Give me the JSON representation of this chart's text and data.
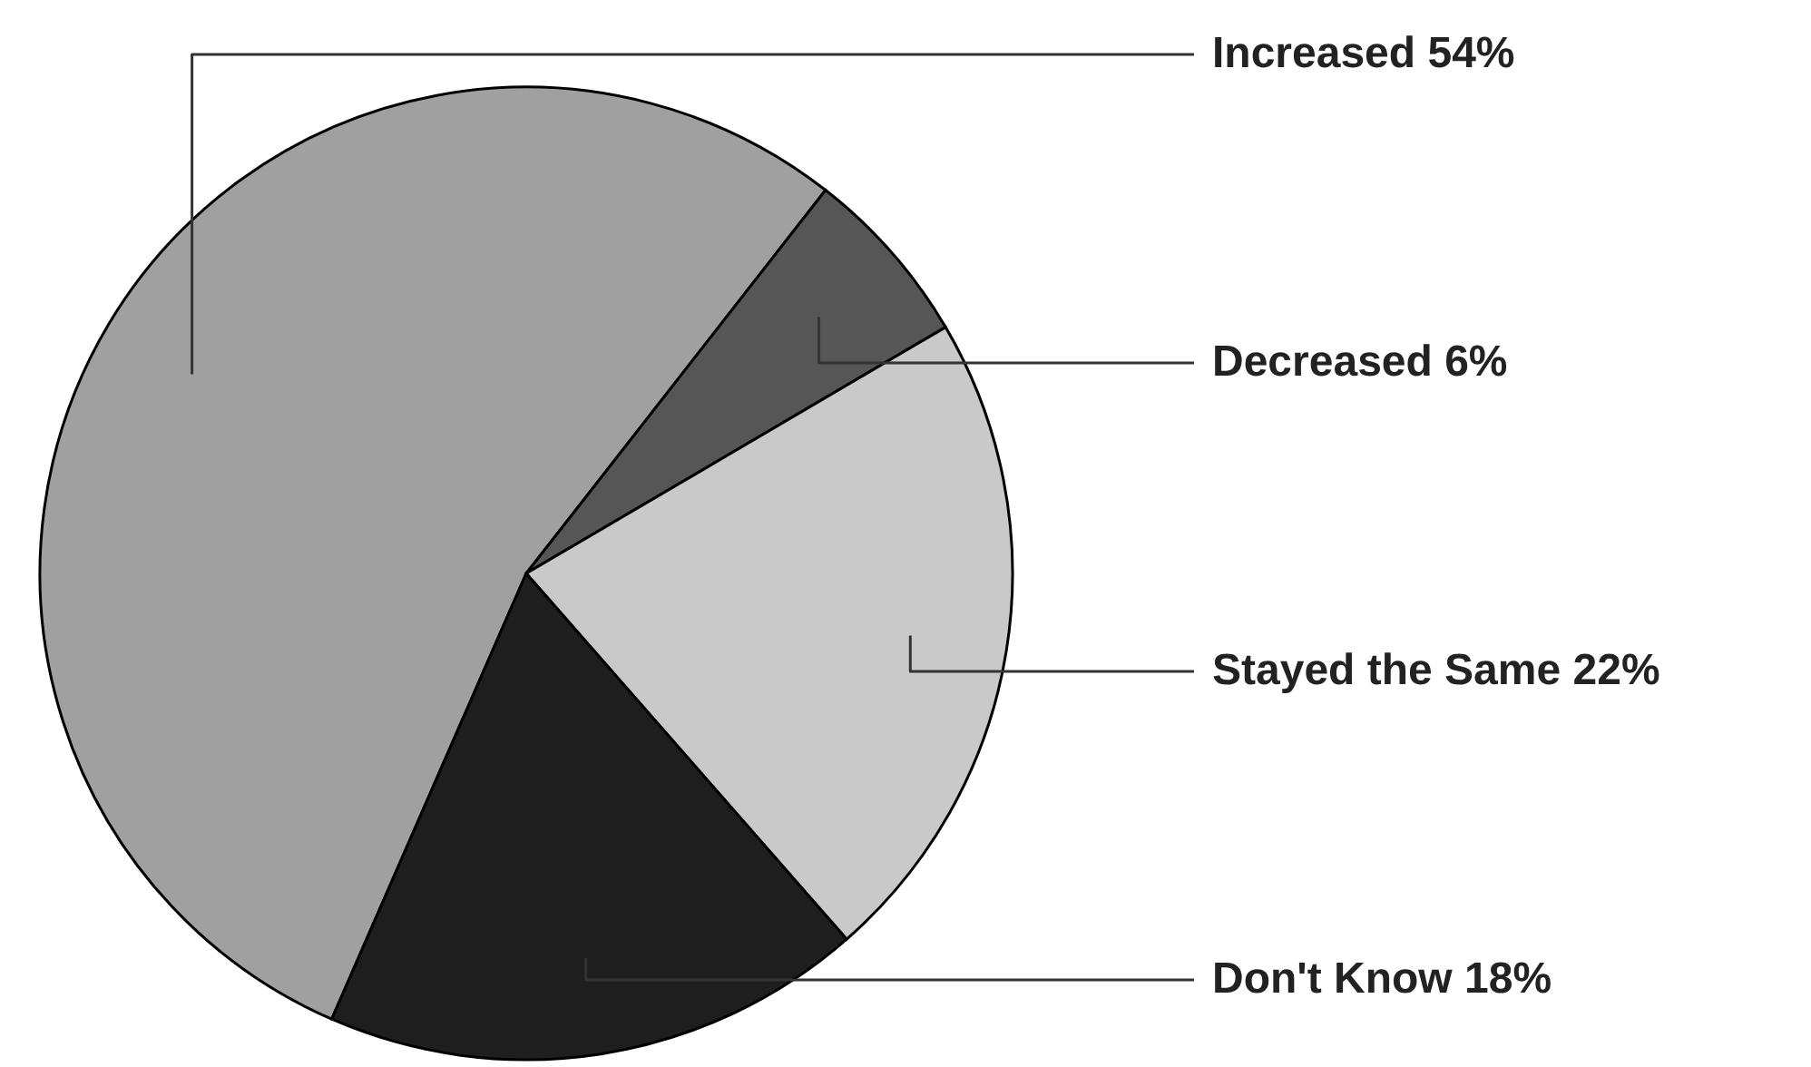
{
  "chart_data": {
    "type": "pie",
    "categories": [
      "Increased",
      "Decreased",
      "Stayed the Same",
      "Don't Know"
    ],
    "values": [
      54,
      6,
      22,
      18
    ],
    "value_labels": [
      "54%",
      "6%",
      "22%",
      "18%"
    ],
    "colors": [
      "#a0a0a0",
      "#565656",
      "#c9c9c9",
      "#1e1e1e"
    ]
  }
}
